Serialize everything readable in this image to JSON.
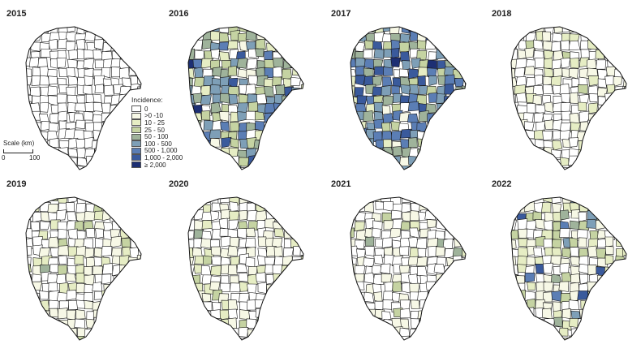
{
  "legend": {
    "title": "Incidence:",
    "classes": [
      {
        "label": "0",
        "color": "#ffffff"
      },
      {
        "label": ">0 -10",
        "color": "#f7f8e6"
      },
      {
        "label": "10 - 25",
        "color": "#e6edc4"
      },
      {
        "label": "25 - 50",
        "color": "#c5d3a2"
      },
      {
        "label": "50 - 100",
        "color": "#9fb39b"
      },
      {
        "label": "100 - 500",
        "color": "#7e9fb7"
      },
      {
        "label": "500 - 1,000",
        "color": "#5b7eb5"
      },
      {
        "label": "1,000 - 2,000",
        "color": "#3a5a9c"
      },
      {
        "label": "≥ 2,000",
        "color": "#1d2f73"
      }
    ]
  },
  "scale": {
    "title": "Scale (km)",
    "min_label": "0",
    "max_label": "100"
  },
  "panels": [
    {
      "year": "2015",
      "weights": [
        1.0,
        0,
        0,
        0,
        0,
        0,
        0,
        0,
        0
      ]
    },
    {
      "year": "2016",
      "weights": [
        0.18,
        0.06,
        0.13,
        0.15,
        0.16,
        0.17,
        0.09,
        0.05,
        0.01
      ]
    },
    {
      "year": "2017",
      "weights": [
        0.1,
        0.04,
        0.09,
        0.12,
        0.15,
        0.22,
        0.16,
        0.1,
        0.02
      ]
    },
    {
      "year": "2018",
      "weights": [
        0.55,
        0.27,
        0.14,
        0.04,
        0,
        0,
        0,
        0,
        0
      ]
    },
    {
      "year": "2019",
      "weights": [
        0.5,
        0.28,
        0.14,
        0.06,
        0.02,
        0,
        0,
        0,
        0
      ]
    },
    {
      "year": "2020",
      "weights": [
        0.55,
        0.27,
        0.13,
        0.04,
        0.01,
        0,
        0,
        0,
        0
      ]
    },
    {
      "year": "2021",
      "weights": [
        0.55,
        0.28,
        0.12,
        0.04,
        0.01,
        0,
        0,
        0,
        0
      ]
    },
    {
      "year": "2022",
      "weights": [
        0.33,
        0.28,
        0.17,
        0.1,
        0.05,
        0.04,
        0.02,
        0.01,
        0
      ]
    }
  ]
}
